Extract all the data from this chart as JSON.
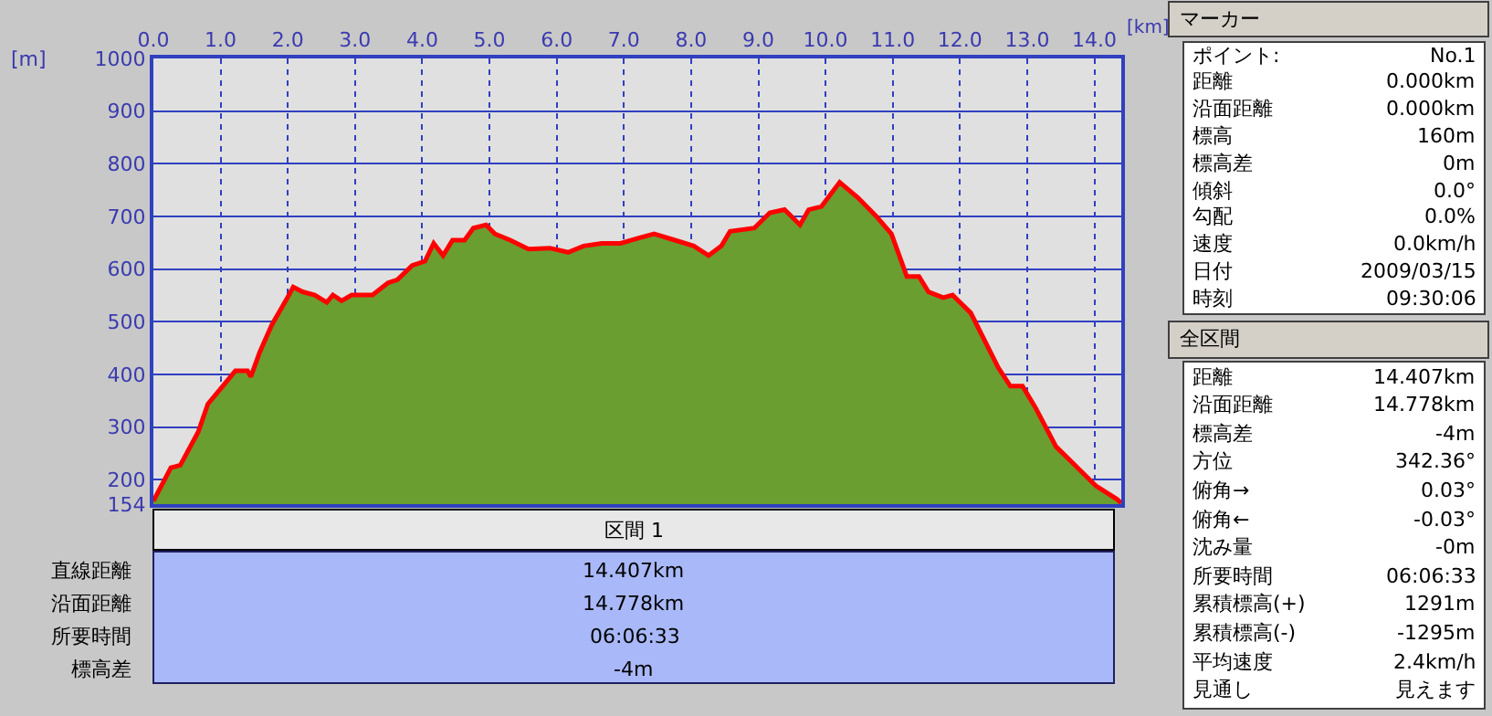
{
  "chart_data": {
    "type": "area",
    "xlabel": "[km]",
    "ylabel": "[m]",
    "x": [
      0,
      0.26,
      0.4,
      0.67,
      0.81,
      1.0,
      1.22,
      1.4,
      1.45,
      1.58,
      1.76,
      1.99,
      2.08,
      2.22,
      2.4,
      2.58,
      2.67,
      2.8,
      2.95,
      3.26,
      3.49,
      3.63,
      3.85,
      4.04,
      4.17,
      4.31,
      4.45,
      4.63,
      4.76,
      4.95,
      5.08,
      5.31,
      5.58,
      5.9,
      6.17,
      6.4,
      6.67,
      6.95,
      7.22,
      7.45,
      7.76,
      8.04,
      8.26,
      8.45,
      8.58,
      8.94,
      9.17,
      9.39,
      9.62,
      9.75,
      9.94,
      10.21,
      10.48,
      10.75,
      10.98,
      11.21,
      11.39,
      11.53,
      11.75,
      11.89,
      12.16,
      12.57,
      12.75,
      12.93,
      13.12,
      13.43,
      13.75,
      14.02,
      14.34,
      14.4
    ],
    "series": [
      {
        "color": "#6a9e30",
        "values": [
          160,
          223,
          228,
          292,
          344,
          373,
          407,
          407,
          396,
          442,
          494,
          545,
          566,
          557,
          551,
          537,
          551,
          540,
          551,
          551,
          574,
          580,
          607,
          615,
          649,
          626,
          655,
          655,
          678,
          684,
          667,
          655,
          638,
          640,
          632,
          644,
          649,
          649,
          659,
          667,
          655,
          644,
          626,
          644,
          672,
          678,
          707,
          713,
          684,
          713,
          719,
          765,
          736,
          701,
          667,
          586,
          586,
          557,
          546,
          551,
          517,
          413,
          378,
          378,
          338,
          263,
          223,
          189,
          163,
          156
        ]
      },
      {
        "type": "line",
        "color": "#ff0000",
        "values": [
          160,
          223,
          228,
          292,
          344,
          373,
          407,
          407,
          396,
          442,
          494,
          545,
          566,
          557,
          551,
          537,
          551,
          540,
          551,
          551,
          574,
          580,
          607,
          615,
          649,
          626,
          655,
          655,
          678,
          684,
          667,
          655,
          638,
          640,
          632,
          644,
          649,
          649,
          659,
          667,
          655,
          644,
          626,
          644,
          672,
          678,
          707,
          713,
          684,
          713,
          719,
          765,
          736,
          701,
          667,
          586,
          586,
          557,
          546,
          551,
          517,
          413,
          378,
          378,
          338,
          263,
          223,
          189,
          163,
          156
        ]
      }
    ],
    "xlim": [
      0,
      14.4
    ],
    "xticks": [
      {
        "value": 0,
        "label": "0.0"
      },
      {
        "value": 1,
        "label": "1.0"
      },
      {
        "value": 2,
        "label": "2.0"
      },
      {
        "value": 3,
        "label": "3.0"
      },
      {
        "value": 4,
        "label": "4.0"
      },
      {
        "value": 5,
        "label": "5.0"
      },
      {
        "value": 6,
        "label": "6.0"
      },
      {
        "value": 7,
        "label": "7.0"
      },
      {
        "value": 8,
        "label": "8.0"
      },
      {
        "value": 9,
        "label": "9.0"
      },
      {
        "value": 10,
        "label": "10.0"
      },
      {
        "value": 11,
        "label": "11.0"
      },
      {
        "value": 12,
        "label": "12.0"
      },
      {
        "value": 13,
        "label": "13.0"
      },
      {
        "value": 14,
        "label": "14.0"
      }
    ],
    "ylim": [
      154,
      1000
    ],
    "yticks": [
      154,
      200,
      300,
      400,
      500,
      600,
      700,
      800,
      900,
      1000
    ],
    "grid": true,
    "marker": "none",
    "line_style": "solid",
    "annotations": [
      "マーカー",
      "ポイント:",
      "No.1",
      "距離",
      "0.000km",
      "沿面距離",
      "0.000km",
      "標高",
      "160m",
      "標高差",
      "0m",
      "傾斜",
      "0.0°",
      "勾配",
      "0.0%",
      "速度",
      "0.0km/h",
      "日付",
      "2009/03/15",
      "時刻",
      "09:30:06",
      "全区間",
      "距離",
      "14.407km",
      "沿面距離",
      "14.778km",
      "標高差",
      "-4m",
      "方位",
      "342.36°",
      "俯角→",
      "0.03°",
      "俯角←",
      "-0.03°",
      "沈み量",
      "-0m",
      "所要時間",
      "06:06:33",
      "累積標高(+)",
      "1291m",
      "累積標高(-)",
      "-1295m",
      "平均速度",
      "2.4km/h",
      "見通し",
      "見えます",
      "区間 1",
      "直線距離",
      "14.407km",
      "沿面距離",
      "14.778km",
      "所要時間",
      "06:06:33",
      "標高差",
      "-4m"
    ]
  }
}
